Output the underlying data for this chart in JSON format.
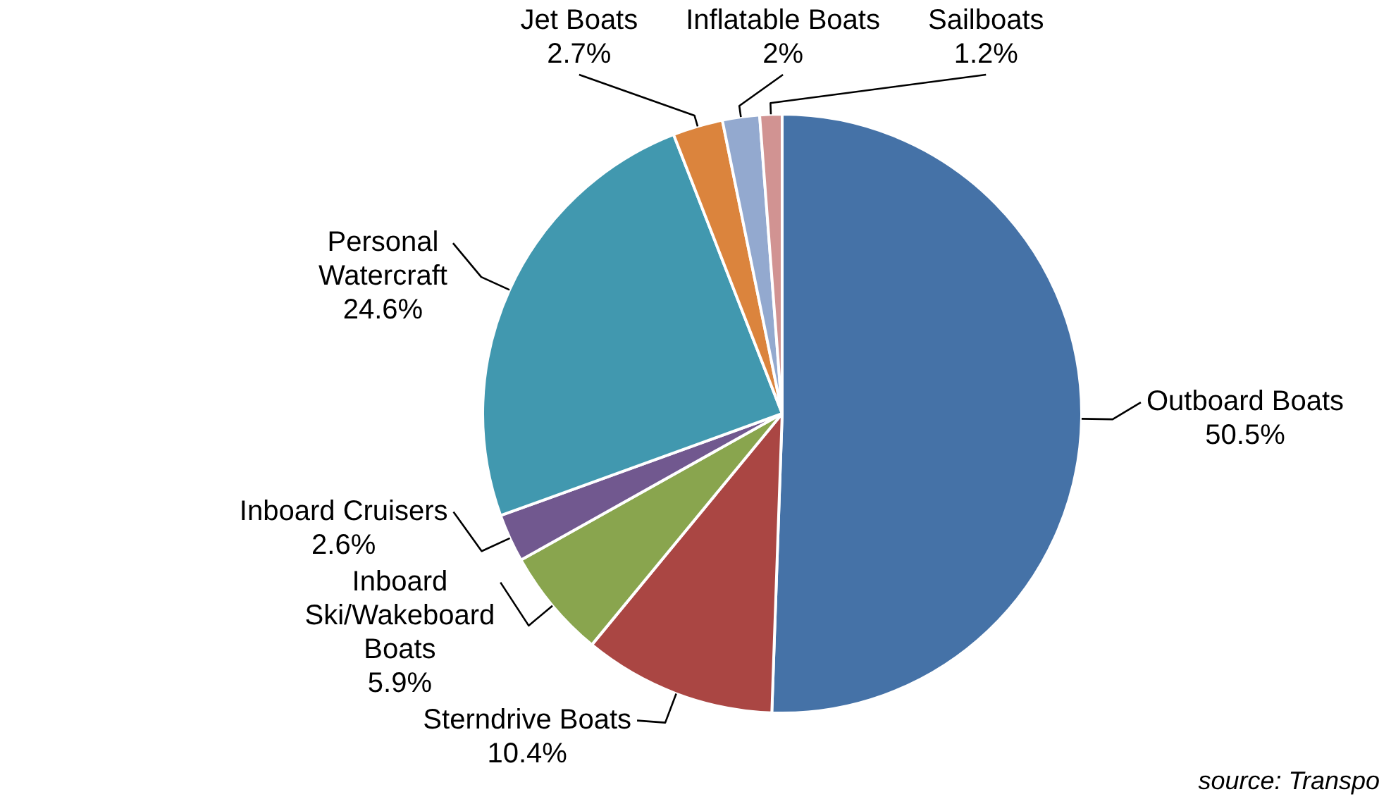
{
  "chart_data": {
    "type": "pie",
    "categories": [
      "Outboard Boats",
      "Sterndrive Boats",
      "Inboard Ski/Wakeboard Boats",
      "Inboard Cruisers",
      "Personal Watercraft",
      "Jet Boats",
      "Inflatable Boats",
      "Sailboats"
    ],
    "values": [
      50.5,
      10.4,
      5.9,
      2.6,
      24.6,
      2.7,
      2,
      1.2
    ],
    "value_labels": [
      "50.5%",
      "10.4%",
      "5.9%",
      "2.6%",
      "24.6%",
      "2.7%",
      "2%",
      "1.2%"
    ],
    "colors": [
      "#4572a7",
      "#aa4643",
      "#89a54e",
      "#71588f",
      "#4198af",
      "#db843d",
      "#93a9cf",
      "#d19392"
    ],
    "legend": false,
    "annotations": [
      "source: Transpo"
    ]
  }
}
